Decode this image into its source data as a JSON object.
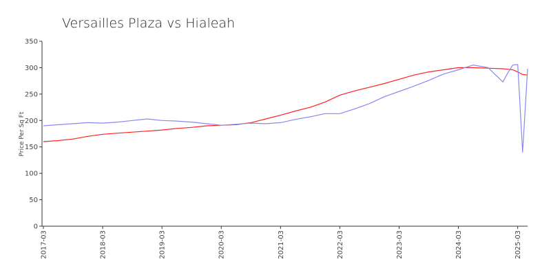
{
  "chart_data": {
    "type": "line",
    "title": "Versailles Plaza vs Hialeah",
    "xlabel": "",
    "ylabel": "Price Per Sq Ft",
    "ylim": [
      0,
      350
    ],
    "y_ticks": [
      0,
      50,
      100,
      150,
      200,
      250,
      300,
      350
    ],
    "x_tick_labels": [
      "2017-03",
      "2018-03",
      "2019-03",
      "2020-03",
      "2021-03",
      "2022-03",
      "2023-03",
      "2024-03",
      "2025-03"
    ],
    "grid": false,
    "legend": "none",
    "x": [
      "2017-03",
      "2017-06",
      "2017-09",
      "2017-12",
      "2018-03",
      "2018-06",
      "2018-09",
      "2018-12",
      "2019-03",
      "2019-06",
      "2019-09",
      "2019-12",
      "2020-03",
      "2020-06",
      "2020-09",
      "2020-12",
      "2021-03",
      "2021-06",
      "2021-09",
      "2021-12",
      "2022-03",
      "2022-06",
      "2022-09",
      "2022-12",
      "2023-03",
      "2023-06",
      "2023-09",
      "2023-12",
      "2024-03",
      "2024-06",
      "2024-09",
      "2024-12",
      "2025-01",
      "2025-02",
      "2025-03",
      "2025-04",
      "2025-05"
    ],
    "series": [
      {
        "color": "#ff2020",
        "values": [
          160,
          162,
          165,
          170,
          174,
          176,
          178,
          180,
          182,
          185,
          187,
          190,
          191,
          192,
          196,
          203,
          210,
          218,
          225,
          235,
          248,
          256,
          263,
          270,
          278,
          286,
          292,
          296,
          300,
          300,
          299,
          298,
          297,
          296,
          292,
          287,
          286
        ]
      },
      {
        "color": "#8888ee",
        "values": [
          190,
          192,
          194,
          196,
          195,
          197,
          200,
          203,
          200,
          199,
          197,
          194,
          191,
          193,
          195,
          194,
          196,
          202,
          207,
          213,
          213,
          222,
          232,
          245,
          255,
          265,
          276,
          288,
          296,
          305,
          300,
          273,
          290,
          305,
          306,
          140,
          298
        ]
      }
    ]
  }
}
